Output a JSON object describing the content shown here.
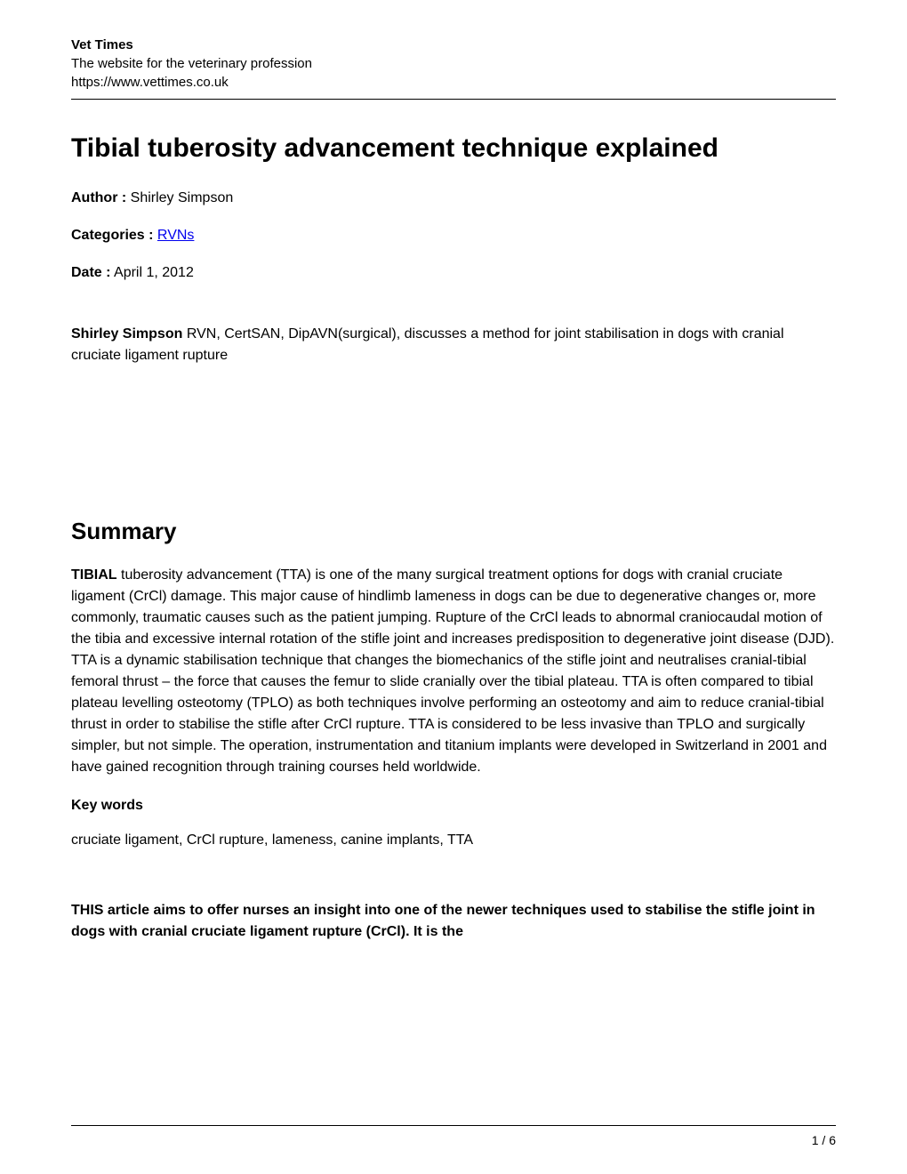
{
  "header": {
    "site_title": "Vet Times",
    "site_subtitle": "The website for the veterinary profession",
    "site_url": "https://www.vettimes.co.uk"
  },
  "article": {
    "title": "Tibial tuberosity advancement technique explained",
    "author_label": "Author :",
    "author_value": " Shirley Simpson",
    "categories_label": "Categories :",
    "categories_link": "RVNs",
    "date_label": "Date :",
    "date_value": " April 1, 2012",
    "author_name_bold": "Shirley Simpson",
    "author_credentials": " RVN, CertSAN, DipAVN(surgical), discusses a method for joint stabilisation in dogs with cranial cruciate ligament rupture"
  },
  "summary": {
    "heading": "Summary",
    "tibial_bold": "TIBIAL",
    "body": " tuberosity advancement (TTA) is one of the many surgical treatment options for dogs with cranial cruciate ligament (CrCl) damage. This major cause of hindlimb lameness in dogs can be due to degenerative changes or, more commonly, traumatic causes such as the patient jumping. Rupture of the CrCl leads to abnormal craniocaudal motion of the tibia and excessive internal rotation of the stifle joint and increases predisposition to degenerative joint disease (DJD). TTA is a dynamic stabilisation technique that changes the biomechanics of the stifle joint and neutralises cranial-tibial femoral thrust – the force that causes the femur to slide cranially over the tibial plateau. TTA is often compared to tibial plateau levelling osteotomy (TPLO) as both techniques involve performing an osteotomy and aim to reduce cranial-tibial thrust in order to stabilise the stifle after CrCl rupture. TTA is considered to be less invasive than TPLO and surgically simpler, but not simple. The operation, instrumentation and titanium implants were developed in Switzerland in 2001 and have gained recognition through training courses held worldwide."
  },
  "keywords": {
    "heading": "Key words",
    "text": " cruciate ligament, CrCl rupture, lameness, canine implants, TTA"
  },
  "closing": {
    "text": "THIS article aims to offer nurses an insight into one of the newer techniques used to stabilise the stifle joint in dogs with cranial cruciate ligament rupture (CrCl). It is the"
  },
  "footer": {
    "page_number": "1 / 6"
  },
  "colors": {
    "text": "#000000",
    "background": "#ffffff",
    "link": "#0000EE",
    "divider": "#000000"
  },
  "typography": {
    "body_fontsize": 16,
    "title_fontsize": 30,
    "heading_fontsize": 26,
    "small_fontsize": 15,
    "footer_fontsize": 14,
    "font_family": "Arial"
  }
}
